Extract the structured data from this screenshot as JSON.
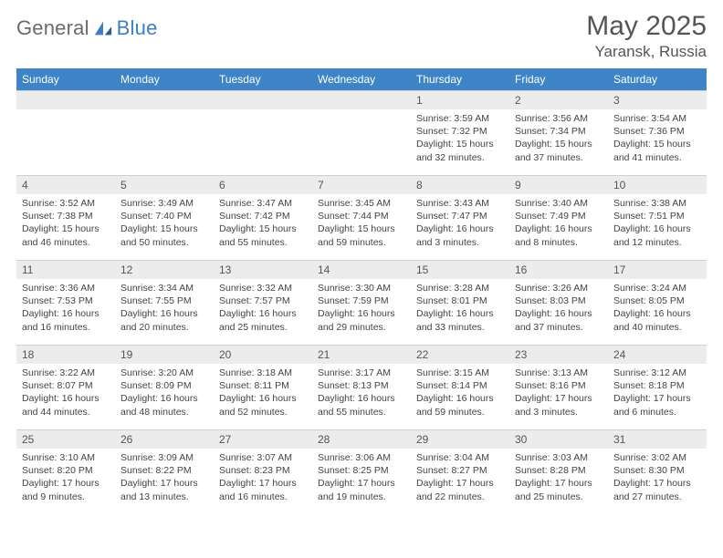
{
  "brand": {
    "part1": "General",
    "part2": "Blue"
  },
  "title": "May 2025",
  "location": "Yaransk, Russia",
  "colors": {
    "headerBg": "#3d85c6",
    "headerText": "#ffffff",
    "dayStripBg": "#ececec",
    "bodyText": "#444444",
    "pageBg": "#ffffff"
  },
  "weekdays": [
    "Sunday",
    "Monday",
    "Tuesday",
    "Wednesday",
    "Thursday",
    "Friday",
    "Saturday"
  ],
  "weeks": [
    [
      null,
      null,
      null,
      null,
      {
        "n": "1",
        "sunrise": "Sunrise: 3:59 AM",
        "sunset": "Sunset: 7:32 PM",
        "daylight1": "Daylight: 15 hours",
        "daylight2": "and 32 minutes."
      },
      {
        "n": "2",
        "sunrise": "Sunrise: 3:56 AM",
        "sunset": "Sunset: 7:34 PM",
        "daylight1": "Daylight: 15 hours",
        "daylight2": "and 37 minutes."
      },
      {
        "n": "3",
        "sunrise": "Sunrise: 3:54 AM",
        "sunset": "Sunset: 7:36 PM",
        "daylight1": "Daylight: 15 hours",
        "daylight2": "and 41 minutes."
      }
    ],
    [
      {
        "n": "4",
        "sunrise": "Sunrise: 3:52 AM",
        "sunset": "Sunset: 7:38 PM",
        "daylight1": "Daylight: 15 hours",
        "daylight2": "and 46 minutes."
      },
      {
        "n": "5",
        "sunrise": "Sunrise: 3:49 AM",
        "sunset": "Sunset: 7:40 PM",
        "daylight1": "Daylight: 15 hours",
        "daylight2": "and 50 minutes."
      },
      {
        "n": "6",
        "sunrise": "Sunrise: 3:47 AM",
        "sunset": "Sunset: 7:42 PM",
        "daylight1": "Daylight: 15 hours",
        "daylight2": "and 55 minutes."
      },
      {
        "n": "7",
        "sunrise": "Sunrise: 3:45 AM",
        "sunset": "Sunset: 7:44 PM",
        "daylight1": "Daylight: 15 hours",
        "daylight2": "and 59 minutes."
      },
      {
        "n": "8",
        "sunrise": "Sunrise: 3:43 AM",
        "sunset": "Sunset: 7:47 PM",
        "daylight1": "Daylight: 16 hours",
        "daylight2": "and 3 minutes."
      },
      {
        "n": "9",
        "sunrise": "Sunrise: 3:40 AM",
        "sunset": "Sunset: 7:49 PM",
        "daylight1": "Daylight: 16 hours",
        "daylight2": "and 8 minutes."
      },
      {
        "n": "10",
        "sunrise": "Sunrise: 3:38 AM",
        "sunset": "Sunset: 7:51 PM",
        "daylight1": "Daylight: 16 hours",
        "daylight2": "and 12 minutes."
      }
    ],
    [
      {
        "n": "11",
        "sunrise": "Sunrise: 3:36 AM",
        "sunset": "Sunset: 7:53 PM",
        "daylight1": "Daylight: 16 hours",
        "daylight2": "and 16 minutes."
      },
      {
        "n": "12",
        "sunrise": "Sunrise: 3:34 AM",
        "sunset": "Sunset: 7:55 PM",
        "daylight1": "Daylight: 16 hours",
        "daylight2": "and 20 minutes."
      },
      {
        "n": "13",
        "sunrise": "Sunrise: 3:32 AM",
        "sunset": "Sunset: 7:57 PM",
        "daylight1": "Daylight: 16 hours",
        "daylight2": "and 25 minutes."
      },
      {
        "n": "14",
        "sunrise": "Sunrise: 3:30 AM",
        "sunset": "Sunset: 7:59 PM",
        "daylight1": "Daylight: 16 hours",
        "daylight2": "and 29 minutes."
      },
      {
        "n": "15",
        "sunrise": "Sunrise: 3:28 AM",
        "sunset": "Sunset: 8:01 PM",
        "daylight1": "Daylight: 16 hours",
        "daylight2": "and 33 minutes."
      },
      {
        "n": "16",
        "sunrise": "Sunrise: 3:26 AM",
        "sunset": "Sunset: 8:03 PM",
        "daylight1": "Daylight: 16 hours",
        "daylight2": "and 37 minutes."
      },
      {
        "n": "17",
        "sunrise": "Sunrise: 3:24 AM",
        "sunset": "Sunset: 8:05 PM",
        "daylight1": "Daylight: 16 hours",
        "daylight2": "and 40 minutes."
      }
    ],
    [
      {
        "n": "18",
        "sunrise": "Sunrise: 3:22 AM",
        "sunset": "Sunset: 8:07 PM",
        "daylight1": "Daylight: 16 hours",
        "daylight2": "and 44 minutes."
      },
      {
        "n": "19",
        "sunrise": "Sunrise: 3:20 AM",
        "sunset": "Sunset: 8:09 PM",
        "daylight1": "Daylight: 16 hours",
        "daylight2": "and 48 minutes."
      },
      {
        "n": "20",
        "sunrise": "Sunrise: 3:18 AM",
        "sunset": "Sunset: 8:11 PM",
        "daylight1": "Daylight: 16 hours",
        "daylight2": "and 52 minutes."
      },
      {
        "n": "21",
        "sunrise": "Sunrise: 3:17 AM",
        "sunset": "Sunset: 8:13 PM",
        "daylight1": "Daylight: 16 hours",
        "daylight2": "and 55 minutes."
      },
      {
        "n": "22",
        "sunrise": "Sunrise: 3:15 AM",
        "sunset": "Sunset: 8:14 PM",
        "daylight1": "Daylight: 16 hours",
        "daylight2": "and 59 minutes."
      },
      {
        "n": "23",
        "sunrise": "Sunrise: 3:13 AM",
        "sunset": "Sunset: 8:16 PM",
        "daylight1": "Daylight: 17 hours",
        "daylight2": "and 3 minutes."
      },
      {
        "n": "24",
        "sunrise": "Sunrise: 3:12 AM",
        "sunset": "Sunset: 8:18 PM",
        "daylight1": "Daylight: 17 hours",
        "daylight2": "and 6 minutes."
      }
    ],
    [
      {
        "n": "25",
        "sunrise": "Sunrise: 3:10 AM",
        "sunset": "Sunset: 8:20 PM",
        "daylight1": "Daylight: 17 hours",
        "daylight2": "and 9 minutes."
      },
      {
        "n": "26",
        "sunrise": "Sunrise: 3:09 AM",
        "sunset": "Sunset: 8:22 PM",
        "daylight1": "Daylight: 17 hours",
        "daylight2": "and 13 minutes."
      },
      {
        "n": "27",
        "sunrise": "Sunrise: 3:07 AM",
        "sunset": "Sunset: 8:23 PM",
        "daylight1": "Daylight: 17 hours",
        "daylight2": "and 16 minutes."
      },
      {
        "n": "28",
        "sunrise": "Sunrise: 3:06 AM",
        "sunset": "Sunset: 8:25 PM",
        "daylight1": "Daylight: 17 hours",
        "daylight2": "and 19 minutes."
      },
      {
        "n": "29",
        "sunrise": "Sunrise: 3:04 AM",
        "sunset": "Sunset: 8:27 PM",
        "daylight1": "Daylight: 17 hours",
        "daylight2": "and 22 minutes."
      },
      {
        "n": "30",
        "sunrise": "Sunrise: 3:03 AM",
        "sunset": "Sunset: 8:28 PM",
        "daylight1": "Daylight: 17 hours",
        "daylight2": "and 25 minutes."
      },
      {
        "n": "31",
        "sunrise": "Sunrise: 3:02 AM",
        "sunset": "Sunset: 8:30 PM",
        "daylight1": "Daylight: 17 hours",
        "daylight2": "and 27 minutes."
      }
    ]
  ]
}
